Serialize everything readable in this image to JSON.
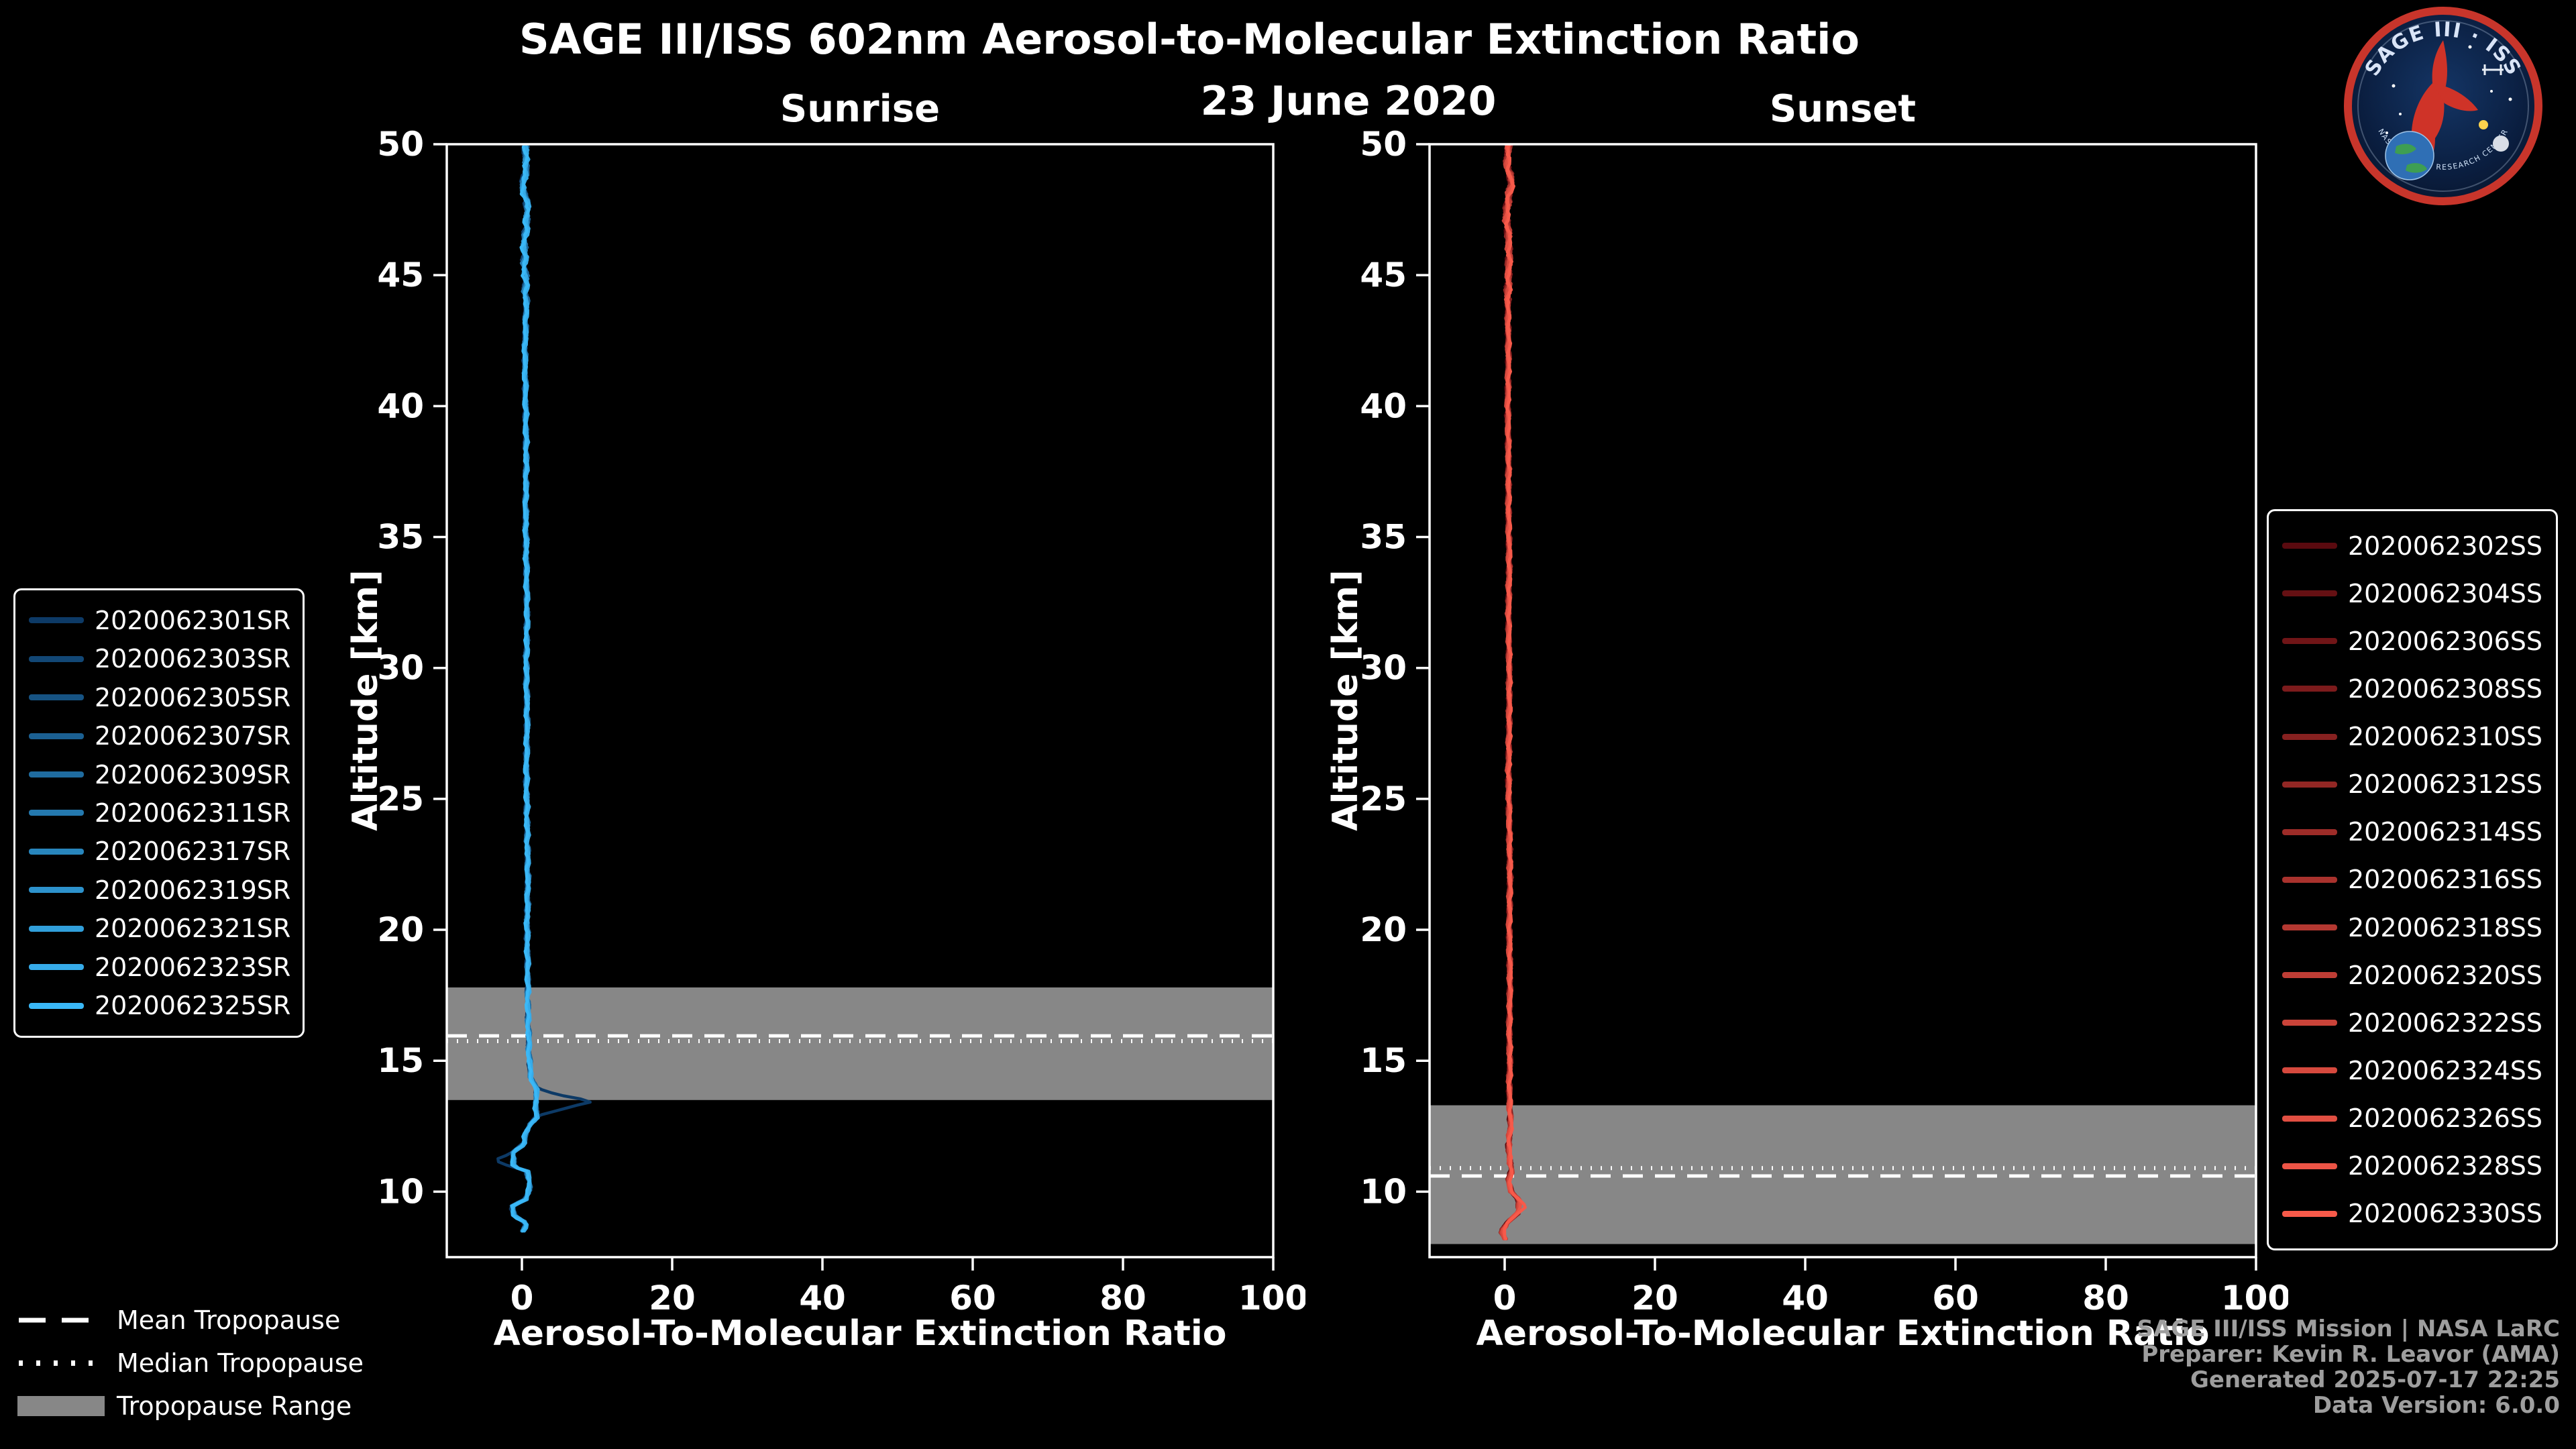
{
  "header": {
    "title": "SAGE III/ISS 602nm Aerosol-to-Molecular Extinction Ratio",
    "date": "23 June 2020"
  },
  "logo": {
    "name": "SAGE III ISS mission patch",
    "arc_text": "SAGE III · ISS",
    "ring_text": "NASA LANGLEY RESEARCH CENTER"
  },
  "footer": {
    "credit_lines": [
      "SAGE III/ISS Mission | NASA LaRC",
      "Preparer: Kevin R. Leavor (AMA)",
      "Generated 2025-07-17 22:25",
      "Data Version: 6.0.0"
    ]
  },
  "tropopause_legend": {
    "mean_label": "Mean Tropopause",
    "median_label": "Median Tropopause",
    "range_label": "Tropopause Range"
  },
  "colors": {
    "background": "#000000",
    "foreground": "#ffffff",
    "tropopause_band": "#878787",
    "credit_text": "#9e9e9e",
    "legend_border": "#ffffff"
  },
  "chart_data": [
    {
      "type": "line",
      "title": "Sunrise",
      "xlabel": "Aerosol-To-Molecular Extinction Ratio",
      "ylabel": "Altitude [km]",
      "xlim": [
        -10,
        100
      ],
      "ylim": [
        7.5,
        50
      ],
      "xticks": [
        0,
        20,
        40,
        60,
        80,
        100
      ],
      "yticks": [
        10,
        15,
        20,
        25,
        30,
        35,
        40,
        45,
        50
      ],
      "grid": false,
      "legend_position": "outside-left",
      "tropopause": {
        "mean_km": 15.95,
        "median_km": 15.75,
        "range_km": [
          13.5,
          17.8
        ]
      },
      "feature_series_index": 0,
      "series": [
        {
          "name": "2020062301SR",
          "color": "#0d3a66"
        },
        {
          "name": "2020062303SR",
          "color": "#124775"
        },
        {
          "name": "2020062305SR",
          "color": "#165383"
        },
        {
          "name": "2020062307SR",
          "color": "#1b6092"
        },
        {
          "name": "2020062309SR",
          "color": "#1f6ca0"
        },
        {
          "name": "2020062311SR",
          "color": "#2479af"
        },
        {
          "name": "2020062317SR",
          "color": "#2886bd"
        },
        {
          "name": "2020062319SR",
          "color": "#2d92cc"
        },
        {
          "name": "2020062321SR",
          "color": "#319fda"
        },
        {
          "name": "2020062323SR",
          "color": "#36abe9"
        },
        {
          "name": "2020062325SR",
          "color": "#3ab8f7"
        }
      ],
      "base_profile": [
        [
          8.5,
          0.2
        ],
        [
          8.8,
          0.6
        ],
        [
          9.1,
          -1.2
        ],
        [
          9.4,
          -1.6
        ],
        [
          9.7,
          0.4
        ],
        [
          10.0,
          0.9
        ],
        [
          10.4,
          1.1
        ],
        [
          10.8,
          0.6
        ],
        [
          11.0,
          -1.8
        ],
        [
          11.2,
          -3.6
        ],
        [
          11.5,
          -1.2
        ],
        [
          11.8,
          0.2
        ],
        [
          12.2,
          0.5
        ],
        [
          12.6,
          1.2
        ],
        [
          12.9,
          2.2
        ],
        [
          13.2,
          6.0
        ],
        [
          13.45,
          9.6
        ],
        [
          13.7,
          5.0
        ],
        [
          14.0,
          1.8
        ],
        [
          14.4,
          1.2
        ],
        [
          15.0,
          1.0
        ],
        [
          16.0,
          0.9
        ],
        [
          17.0,
          0.8
        ],
        [
          18.0,
          0.8
        ],
        [
          20.0,
          0.7
        ],
        [
          22.0,
          0.8
        ],
        [
          24.0,
          0.7
        ],
        [
          26.0,
          0.6
        ],
        [
          28.0,
          0.7
        ],
        [
          30.0,
          0.6
        ],
        [
          32.0,
          0.7
        ],
        [
          34.0,
          0.6
        ],
        [
          36.0,
          0.5
        ],
        [
          38.0,
          0.6
        ],
        [
          40.0,
          0.5
        ],
        [
          42.0,
          0.4
        ],
        [
          44.0,
          0.6
        ],
        [
          46.0,
          0.3
        ],
        [
          47.5,
          0.8
        ],
        [
          48.5,
          0.1
        ],
        [
          49.2,
          0.7
        ],
        [
          50.0,
          0.3
        ]
      ]
    },
    {
      "type": "line",
      "title": "Sunset",
      "xlabel": "Aerosol-To-Molecular Extinction Ratio",
      "ylabel": "Altitude [km]",
      "xlim": [
        -10,
        100
      ],
      "ylim": [
        7.5,
        50
      ],
      "xticks": [
        0,
        20,
        40,
        60,
        80,
        100
      ],
      "yticks": [
        10,
        15,
        20,
        25,
        30,
        35,
        40,
        45,
        50
      ],
      "grid": false,
      "legend_position": "outside-right",
      "tropopause": {
        "mean_km": 10.6,
        "median_km": 10.9,
        "range_km": [
          8.0,
          13.3
        ]
      },
      "feature_series_index": 14,
      "series": [
        {
          "name": "2020062302SS",
          "color": "#5a0a0f"
        },
        {
          "name": "2020062304SS",
          "color": "#651013"
        },
        {
          "name": "2020062306SS",
          "color": "#701517"
        },
        {
          "name": "2020062308SS",
          "color": "#7c1b1c"
        },
        {
          "name": "2020062310SS",
          "color": "#872120"
        },
        {
          "name": "2020062312SS",
          "color": "#922724"
        },
        {
          "name": "2020062314SS",
          "color": "#9d2c28"
        },
        {
          "name": "2020062316SS",
          "color": "#a9322d"
        },
        {
          "name": "2020062318SS",
          "color": "#b43831"
        },
        {
          "name": "2020062320SS",
          "color": "#bf3d35"
        },
        {
          "name": "2020062322SS",
          "color": "#ca4339"
        },
        {
          "name": "2020062324SS",
          "color": "#d6493e"
        },
        {
          "name": "2020062326SS",
          "color": "#e14f42"
        },
        {
          "name": "2020062328SS",
          "color": "#ec5446"
        },
        {
          "name": "2020062330SS",
          "color": "#f75a4a"
        }
      ],
      "base_profile": [
        [
          8.2,
          0.1
        ],
        [
          8.5,
          -0.4
        ],
        [
          8.8,
          0.3
        ],
        [
          9.1,
          1.4
        ],
        [
          9.4,
          2.6
        ],
        [
          9.7,
          1.8
        ],
        [
          10.0,
          0.9
        ],
        [
          10.4,
          0.5
        ],
        [
          10.8,
          0.9
        ],
        [
          11.2,
          0.7
        ],
        [
          11.8,
          0.5
        ],
        [
          12.5,
          0.8
        ],
        [
          13.0,
          0.7
        ],
        [
          14.0,
          0.6
        ],
        [
          15.0,
          0.7
        ],
        [
          16.0,
          0.6
        ],
        [
          18.0,
          0.7
        ],
        [
          20.0,
          0.6
        ],
        [
          22.0,
          0.7
        ],
        [
          24.0,
          0.6
        ],
        [
          26.0,
          0.5
        ],
        [
          28.0,
          0.6
        ],
        [
          30.0,
          0.6
        ],
        [
          32.0,
          0.5
        ],
        [
          34.0,
          0.6
        ],
        [
          36.0,
          0.5
        ],
        [
          38.0,
          0.5
        ],
        [
          40.0,
          0.4
        ],
        [
          42.0,
          0.5
        ],
        [
          44.0,
          0.4
        ],
        [
          46.0,
          0.6
        ],
        [
          47.5,
          0.2
        ],
        [
          48.5,
          0.9
        ],
        [
          49.3,
          0.3
        ],
        [
          50.0,
          0.5
        ]
      ]
    }
  ]
}
